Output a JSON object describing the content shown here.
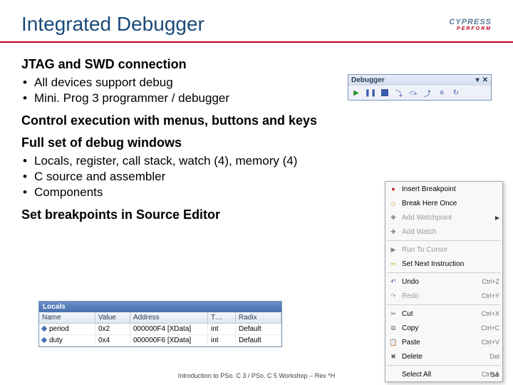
{
  "title": "Integrated Debugger",
  "logo": {
    "name": "CYPRESS",
    "sub": "PERFORM"
  },
  "sections": [
    {
      "head": "JTAG and SWD connection",
      "bullets": [
        "All devices support debug",
        "Mini. Prog 3 programmer / debugger"
      ]
    },
    {
      "head": "Control execution with menus, buttons and keys",
      "bullets": []
    },
    {
      "head": "Full set of debug windows",
      "bullets": [
        "Locals, register, call stack, watch (4), memory (4)",
        "C source and assembler",
        "Components"
      ]
    },
    {
      "head": "Set breakpoints in Source Editor",
      "bullets": []
    }
  ],
  "debugger_toolbar": {
    "title": "Debugger",
    "icons": [
      "play",
      "pause",
      "stop",
      "step-into",
      "step-over",
      "step-out",
      "run-to",
      "restart"
    ]
  },
  "context_menu": {
    "items": [
      {
        "icon": "●",
        "icon_color": "#c02020",
        "label": "Insert Breakpoint",
        "shortcut": "",
        "enabled": true
      },
      {
        "icon": "◇",
        "icon_color": "#c0a020",
        "label": "Break Here Once",
        "shortcut": "",
        "enabled": true
      },
      {
        "icon": "✚",
        "icon_color": "#808080",
        "label": "Add Watchpoint",
        "shortcut": "",
        "enabled": false,
        "arrow": true
      },
      {
        "icon": "✚",
        "icon_color": "#808080",
        "label": "Add Watch",
        "shortcut": "",
        "enabled": false
      },
      {
        "sep": true
      },
      {
        "icon": "▶",
        "icon_color": "#808080",
        "label": "Run To Cursor",
        "shortcut": "",
        "enabled": false
      },
      {
        "icon": "⇨",
        "icon_color": "#c0a020",
        "label": "Set Next Instruction",
        "shortcut": "",
        "enabled": true
      },
      {
        "sep": true
      },
      {
        "icon": "↶",
        "icon_color": "#3a5aaa",
        "label": "Undo",
        "shortcut": "Ctrl+Z",
        "enabled": true
      },
      {
        "icon": "↷",
        "icon_color": "#a0a0a0",
        "label": "Redo",
        "shortcut": "Ctrl+Y",
        "enabled": false
      },
      {
        "sep": true
      },
      {
        "icon": "✂",
        "icon_color": "#606060",
        "label": "Cut",
        "shortcut": "Ctrl+X",
        "enabled": true
      },
      {
        "icon": "⧉",
        "icon_color": "#606060",
        "label": "Copy",
        "shortcut": "Ctrl+C",
        "enabled": true
      },
      {
        "icon": "📋",
        "icon_color": "#606060",
        "label": "Paste",
        "shortcut": "Ctrl+V",
        "enabled": true
      },
      {
        "icon": "✖",
        "icon_color": "#606060",
        "label": "Delete",
        "shortcut": "Del",
        "enabled": true
      },
      {
        "sep": true
      },
      {
        "icon": "",
        "icon_color": "",
        "label": "Select All",
        "shortcut": "Ctrl+A",
        "enabled": true
      }
    ]
  },
  "locals": {
    "title": "Locals",
    "columns": [
      "Name",
      "Value",
      "Address",
      "T…",
      "Radix"
    ],
    "rows": [
      {
        "name": "period",
        "value": "0x2",
        "addr": "000000F4 [XData]",
        "type": "int",
        "radix": "Default"
      },
      {
        "name": "duty",
        "value": "0x4",
        "addr": "000000F6 [XData]",
        "type": "int",
        "radix": "Default"
      }
    ]
  },
  "footer": "Introduction to PSo. C 3 / PSo. C 5 Workshop – Rev *H",
  "page": "54"
}
